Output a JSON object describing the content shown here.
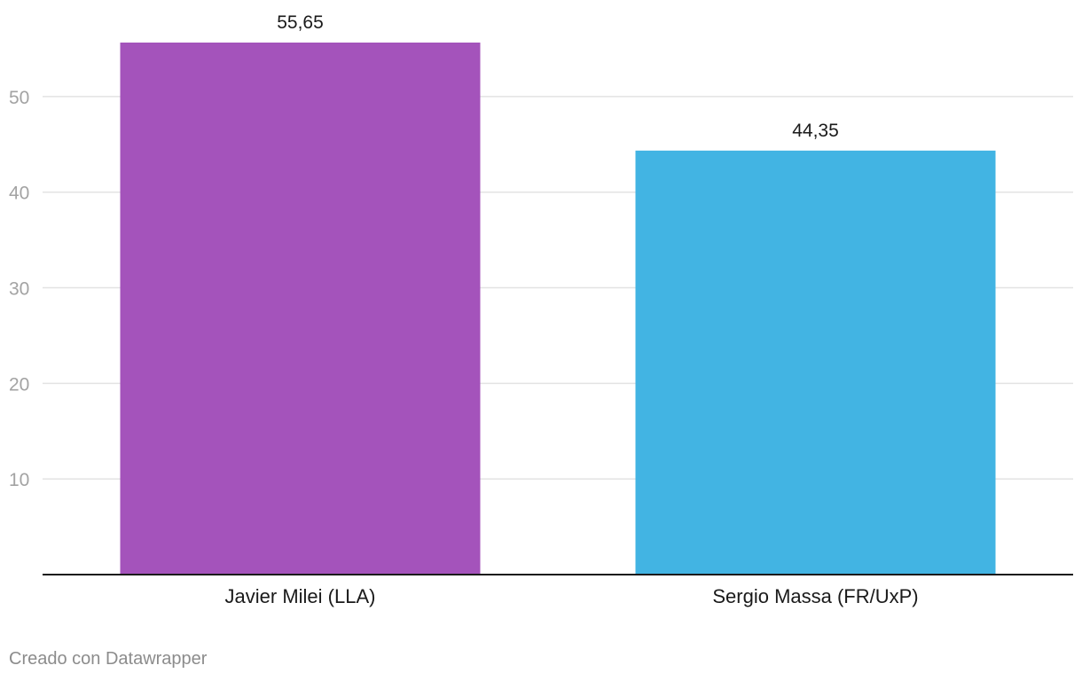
{
  "chart_data": {
    "type": "bar",
    "categories": [
      "Javier Milei (LLA)",
      "Sergio Massa (FR/UxP)"
    ],
    "values": [
      55.65,
      44.35
    ],
    "value_labels": [
      "55,65",
      "44,35"
    ],
    "colors": [
      "#a453bb",
      "#42b4e3"
    ],
    "title": "",
    "xlabel": "",
    "ylabel": "",
    "ylim": [
      0,
      55.65
    ],
    "yticks": [
      10,
      20,
      30,
      40,
      50
    ],
    "grid": true,
    "legend": "none"
  },
  "footer": {
    "credit": "Creado con Datawrapper"
  }
}
